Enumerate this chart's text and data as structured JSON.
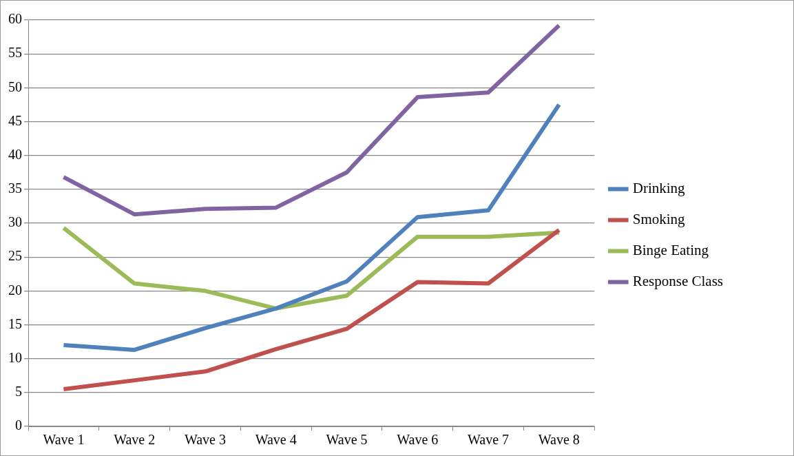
{
  "chart_data": {
    "type": "line",
    "categories": [
      "Wave 1",
      "Wave 2",
      "Wave 3",
      "Wave 4",
      "Wave 5",
      "Wave 6",
      "Wave 7",
      "Wave 8"
    ],
    "series": [
      {
        "name": "Drinking",
        "color": "#4f81bd",
        "values": [
          12.0,
          11.3,
          14.5,
          17.4,
          21.4,
          30.9,
          31.9,
          47.5
        ]
      },
      {
        "name": "Smoking",
        "color": "#c0504d",
        "values": [
          5.5,
          6.8,
          8.1,
          11.4,
          14.4,
          21.3,
          21.1,
          29.0
        ]
      },
      {
        "name": "Binge Eating",
        "color": "#9bbb59",
        "values": [
          29.3,
          21.1,
          20.0,
          17.4,
          19.3,
          28.0,
          28.0,
          28.6
        ]
      },
      {
        "name": "Response Class",
        "color": "#8064a2",
        "values": [
          36.8,
          31.3,
          32.1,
          32.3,
          37.5,
          48.6,
          49.3,
          59.2
        ]
      }
    ],
    "ylim": [
      0,
      60
    ],
    "yticks": [
      0,
      5,
      10,
      15,
      20,
      25,
      30,
      35,
      40,
      45,
      50,
      55,
      60
    ],
    "grid": "y",
    "legend": "right",
    "marker": "none",
    "line_style": "solid"
  }
}
